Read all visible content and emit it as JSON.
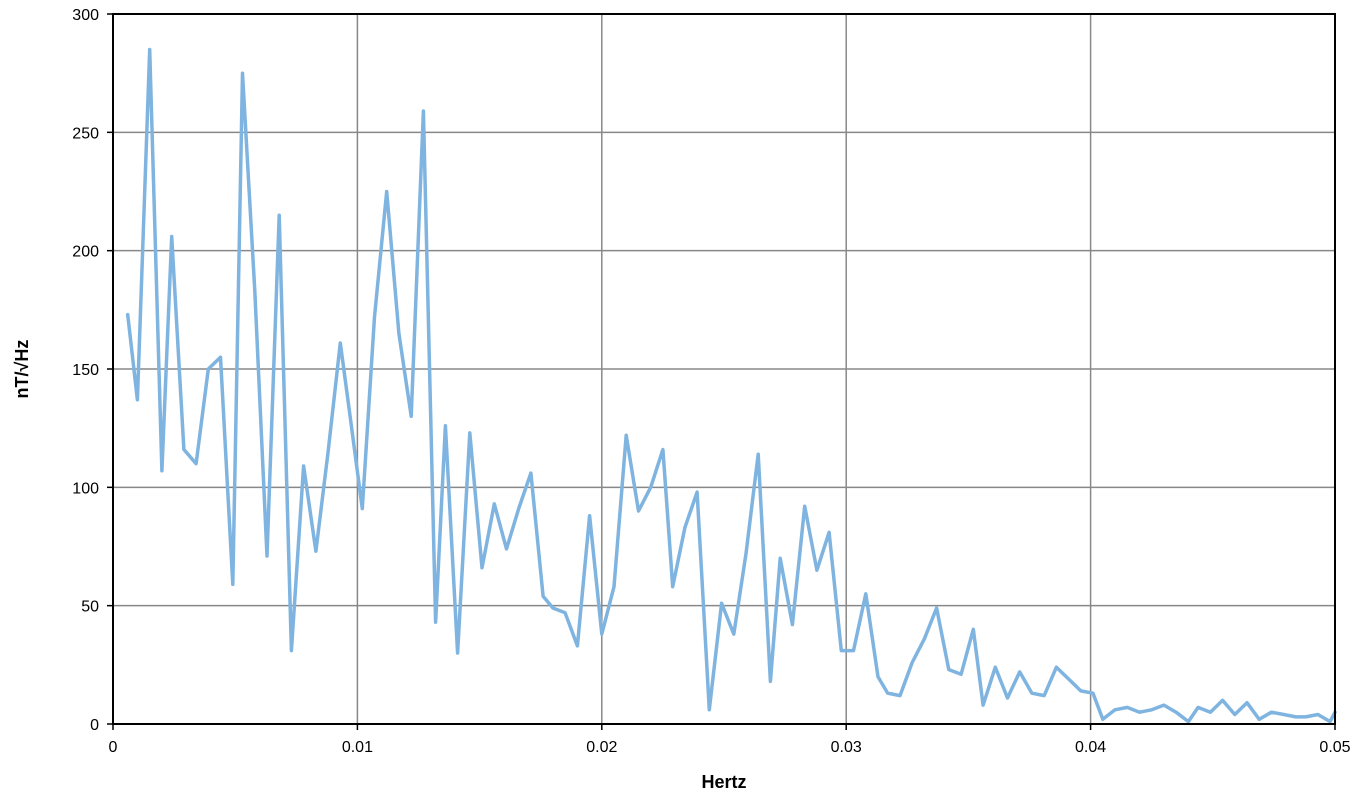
{
  "chart_data": {
    "type": "line",
    "title": "",
    "xlabel": "Hertz",
    "ylabel": "nT/√Hz",
    "xlim": [
      0,
      0.05
    ],
    "ylim": [
      0,
      300
    ],
    "x_ticks": [
      0,
      0.01,
      0.02,
      0.03,
      0.04,
      0.05
    ],
    "x_tick_labels": [
      "0",
      "0.01",
      "0.02",
      "0.03",
      "0.04",
      "0.05"
    ],
    "y_ticks": [
      0,
      50,
      100,
      150,
      200,
      250,
      300
    ],
    "y_tick_labels": [
      "0",
      "50",
      "100",
      "150",
      "200",
      "250",
      "300"
    ],
    "grid": true,
    "legend": "none",
    "line_color": "#7fb4e0",
    "series": [
      {
        "x": [
          0.0006,
          0.001,
          0.0015,
          0.002,
          0.0024,
          0.0029,
          0.0034,
          0.0039,
          0.0044,
          0.0049,
          0.0053,
          0.0058,
          0.0063,
          0.0068,
          0.0073,
          0.0078,
          0.0083,
          0.0088,
          0.0093,
          0.0097,
          0.0102,
          0.0107,
          0.0112,
          0.0117,
          0.0122,
          0.0127,
          0.0132,
          0.0136,
          0.0141,
          0.0146,
          0.0151,
          0.0156,
          0.0161,
          0.0166,
          0.0171,
          0.0176,
          0.018,
          0.0185,
          0.019,
          0.0195,
          0.02,
          0.0205,
          0.021,
          0.0215,
          0.022,
          0.0225,
          0.0229,
          0.0234,
          0.0239,
          0.0244,
          0.0249,
          0.0254,
          0.0259,
          0.0264,
          0.0269,
          0.0273,
          0.0278,
          0.0283,
          0.0288,
          0.0293,
          0.0298,
          0.0303,
          0.0308,
          0.0313,
          0.0317,
          0.0322,
          0.0327,
          0.0332,
          0.0337,
          0.0342,
          0.0347,
          0.0352,
          0.0356,
          0.0361,
          0.0366,
          0.0371,
          0.0376,
          0.0381,
          0.0386,
          0.0391,
          0.0396,
          0.0401,
          0.0405,
          0.041,
          0.0415,
          0.042,
          0.0425,
          0.043,
          0.0435,
          0.044,
          0.0444,
          0.0449,
          0.0454,
          0.0459,
          0.0464,
          0.0469,
          0.0474,
          0.0479,
          0.0484,
          0.0488,
          0.0493,
          0.0498,
          0.05
        ],
        "y": [
          173,
          137,
          285,
          107,
          206,
          116,
          110,
          150,
          155,
          59,
          275,
          183,
          71,
          215,
          31,
          109,
          73,
          115,
          161,
          130,
          91,
          172,
          225,
          165,
          130,
          259,
          43,
          126,
          30,
          123,
          66,
          93,
          74,
          91,
          106,
          54,
          49,
          47,
          33,
          88,
          38,
          58,
          122,
          90,
          100,
          116,
          58,
          83,
          98,
          6,
          51,
          38,
          72,
          114,
          18,
          70,
          42,
          92,
          65,
          81,
          31,
          31,
          55,
          20,
          13,
          12,
          26,
          36,
          49,
          23,
          21,
          40,
          8,
          24,
          11,
          22,
          13,
          12,
          24,
          19,
          14,
          13,
          2,
          6,
          7,
          5,
          6,
          8,
          5,
          1,
          7,
          5,
          10,
          4,
          9,
          2,
          5,
          4,
          3,
          3,
          4,
          1,
          5
        ]
      }
    ]
  }
}
